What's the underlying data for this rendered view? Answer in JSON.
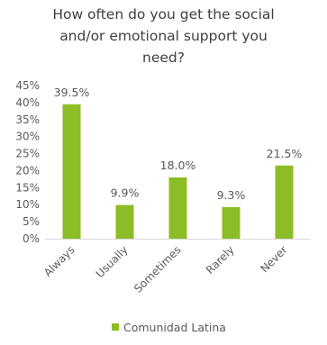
{
  "chart_data": {
    "type": "bar",
    "title_lines": [
      "How often do you get the social",
      "and/or emotional support you",
      "need?"
    ],
    "categories": [
      "Always",
      "Usually",
      "Sometimes",
      "Rarely",
      "Never"
    ],
    "series": [
      {
        "name": "Comunidad Latina",
        "values": [
          39.5,
          9.9,
          18.0,
          9.3,
          21.5
        ],
        "data_labels": [
          "39.5%",
          "9.9%",
          "18.0%",
          "9.3%",
          "21.5%"
        ]
      }
    ],
    "y_ticks": [
      "0%",
      "5%",
      "10%",
      "15%",
      "20%",
      "25%",
      "30%",
      "35%",
      "40%",
      "45%"
    ],
    "ylim": [
      0,
      45
    ],
    "grid": false,
    "legend_position": "bottom",
    "colors": {
      "bar": "#8cbd26",
      "text": "#595959",
      "axis": "#d9d9d9"
    }
  }
}
